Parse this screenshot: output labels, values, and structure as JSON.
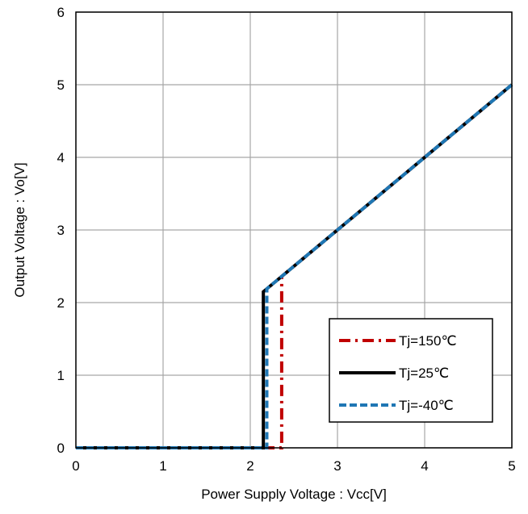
{
  "chart_data": {
    "type": "line",
    "title": "",
    "xlabel": "Power Supply Voltage : Vcc[V]",
    "ylabel": "Output Voltage : Vo[V]",
    "xlim": [
      0,
      5
    ],
    "ylim": [
      0,
      6
    ],
    "xticks": [
      "0",
      "1",
      "2",
      "3",
      "4",
      "5"
    ],
    "yticks": [
      "0",
      "1",
      "2",
      "3",
      "4",
      "5",
      "6"
    ],
    "grid": true,
    "legend_position": "bottom-right",
    "series": [
      {
        "name": "Tj=150℃",
        "color": "#c00000",
        "dash": "dash-dot",
        "points": [
          [
            0,
            0
          ],
          [
            2.36,
            0
          ],
          [
            2.36,
            2.36
          ],
          [
            5,
            5
          ]
        ]
      },
      {
        "name": "Tj=25℃",
        "color": "#000000",
        "dash": "solid",
        "points": [
          [
            0,
            0
          ],
          [
            2.15,
            0
          ],
          [
            2.15,
            2.15
          ],
          [
            5,
            5
          ]
        ]
      },
      {
        "name": "Tj=-40℃",
        "color": "#1f77b4",
        "dash": "dashed",
        "points": [
          [
            0,
            0
          ],
          [
            2.19,
            0
          ],
          [
            2.19,
            2.19
          ],
          [
            5,
            5
          ]
        ]
      }
    ]
  }
}
